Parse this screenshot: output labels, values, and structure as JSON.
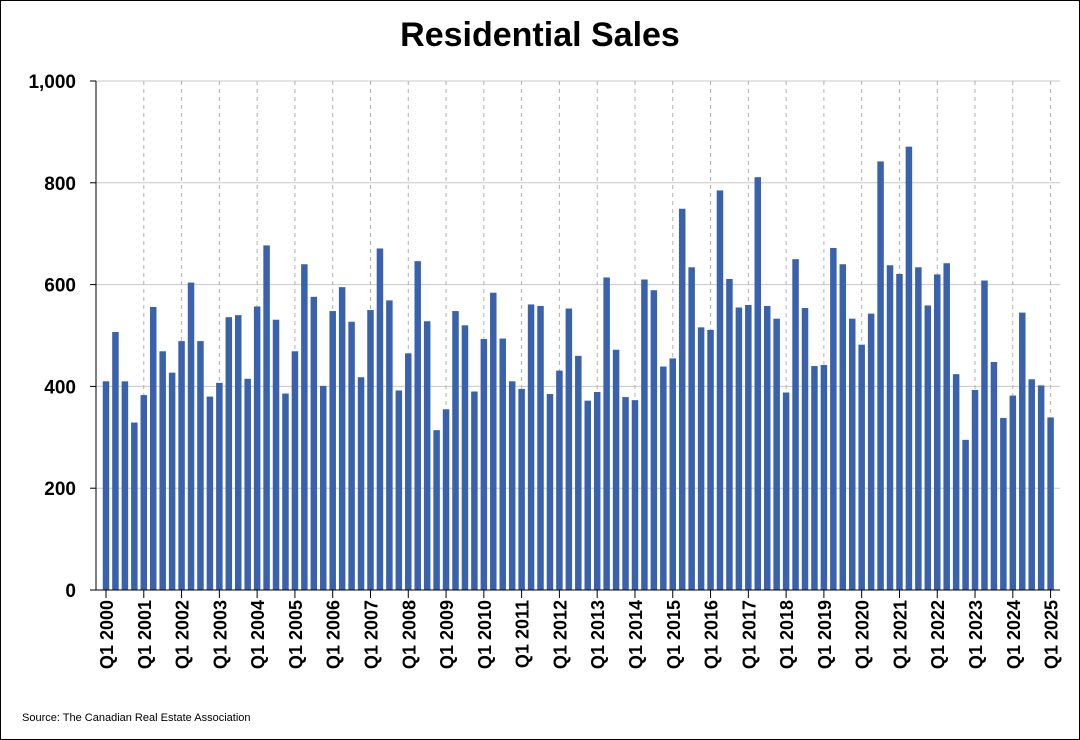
{
  "chart_data": {
    "type": "bar",
    "title": "Residential Sales",
    "source": "Source: The Canadian Real Estate Association",
    "xlabel": "",
    "ylabel": "",
    "ylim": [
      0,
      1000
    ],
    "yticks": [
      0,
      200,
      400,
      600,
      800,
      1000
    ],
    "ytick_labels": [
      "0",
      "200",
      "400",
      "600",
      "800",
      "1,000"
    ],
    "xtick_labels": [
      "Q1 2000",
      "Q1 2001",
      "Q1 2002",
      "Q1 2003",
      "Q1 2004",
      "Q1 2005",
      "Q1 2006",
      "Q1 2007",
      "Q1 2008",
      "Q1 2009",
      "Q1 2010",
      "Q1 2011",
      "Q1 2012",
      "Q1 2013",
      "Q1 2014",
      "Q1 2015",
      "Q1 2016",
      "Q1 2017",
      "Q1 2018",
      "Q1 2019",
      "Q1 2020",
      "Q1 2021",
      "Q1 2022",
      "Q1 2023",
      "Q1 2024",
      "Q1 2025"
    ],
    "grid": true,
    "bar_color": "#3A62AC",
    "values": [
      410,
      507,
      410,
      329,
      383,
      556,
      469,
      427,
      489,
      604,
      489,
      380,
      407,
      536,
      540,
      415,
      557,
      677,
      531,
      386,
      469,
      640,
      576,
      401,
      548,
      595,
      527,
      418,
      550,
      671,
      569,
      392,
      465,
      646,
      528,
      314,
      355,
      548,
      520,
      390,
      493,
      584,
      494,
      410,
      395,
      561,
      558,
      385,
      431,
      553,
      460,
      372,
      389,
      614,
      472,
      379,
      373,
      610,
      589,
      439,
      455,
      749,
      634,
      516,
      511,
      785,
      611,
      555,
      560,
      811,
      558,
      533,
      388,
      650,
      554,
      440,
      442,
      672,
      640,
      533,
      482,
      543,
      842,
      638,
      621,
      871,
      634,
      559,
      620,
      642,
      424,
      295,
      393,
      608,
      448,
      338,
      382,
      545,
      414,
      402,
      339
    ]
  }
}
